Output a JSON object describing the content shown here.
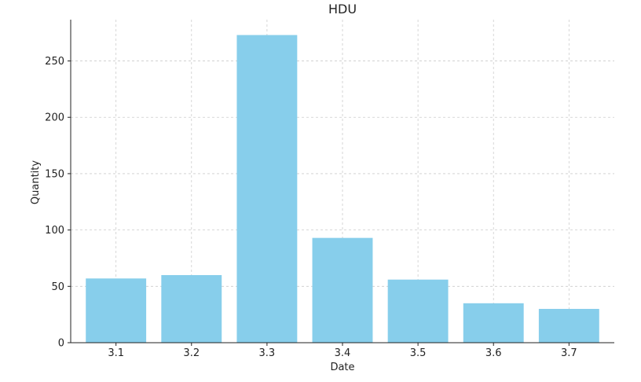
{
  "chart_data": {
    "type": "bar",
    "title": "HDU",
    "xlabel": "Date",
    "ylabel": "Quantity",
    "categories": [
      "3.1",
      "3.2",
      "3.3",
      "3.4",
      "3.5",
      "3.6",
      "3.7"
    ],
    "values": [
      57,
      60,
      273,
      93,
      56,
      35,
      30
    ],
    "ylim": [
      0,
      286.65
    ],
    "yticks": [
      0,
      50,
      100,
      150,
      200,
      250
    ],
    "grid": true,
    "bar_color": "#87CEEB"
  }
}
